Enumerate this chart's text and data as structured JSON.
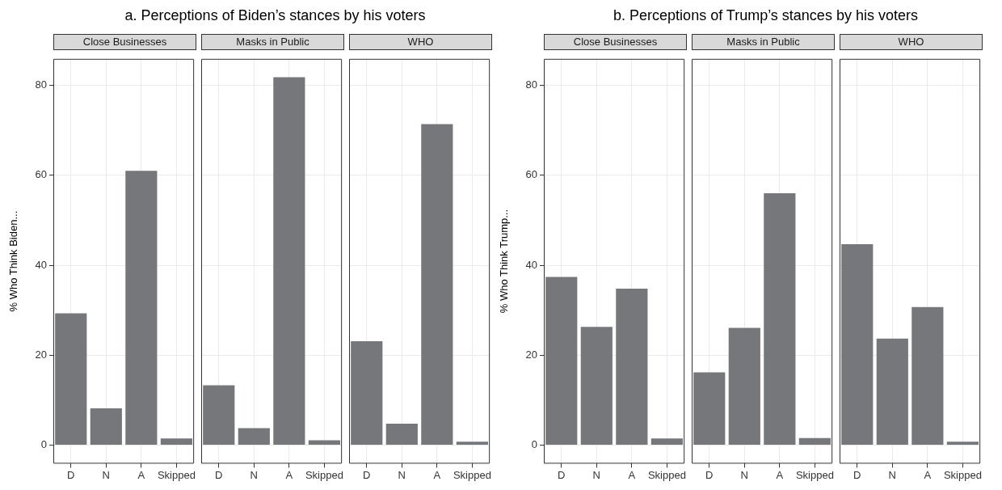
{
  "chart_data": [
    {
      "type": "bar",
      "title": "a. Perceptions of Biden’s stances by his voters",
      "subtitle": "Close Businesses",
      "ylabel": "% Who Think Biden...",
      "categories": [
        "D",
        "N",
        "A",
        "Skipped"
      ],
      "values": [
        29.3,
        8.2,
        61.0,
        1.5
      ],
      "color": "#76777b",
      "ylim": [
        -4.1,
        85.9
      ],
      "yticks": [
        0,
        20,
        40,
        60,
        80
      ],
      "grid": true
    },
    {
      "type": "bar",
      "subtitle": "Masks in Public",
      "categories": [
        "D",
        "N",
        "A",
        "Skipped"
      ],
      "values": [
        13.3,
        3.8,
        81.8,
        1.1
      ],
      "color": "#76777b",
      "ylim": [
        -4.1,
        85.9
      ],
      "yticks": [
        0,
        20,
        40,
        60,
        80
      ],
      "grid": true,
      "tick_labels": "x"
    },
    {
      "type": "bar",
      "subtitle": "WHO",
      "categories": [
        "D",
        "N",
        "A",
        "Skipped"
      ],
      "values": [
        23.1,
        4.8,
        71.4,
        0.8
      ],
      "color": "#76777b",
      "ylim": [
        -4.1,
        85.9
      ],
      "yticks": [
        0,
        20,
        40,
        60,
        80
      ],
      "grid": true,
      "tick_labels": "x"
    },
    {
      "type": "bar",
      "title": "b. Perceptions of Trump’s stances by his voters",
      "subtitle": "Close Businesses",
      "ylabel": "% Who Think Trump...",
      "categories": [
        "D",
        "N",
        "A",
        "Skipped"
      ],
      "values": [
        37.4,
        26.3,
        34.8,
        1.5
      ],
      "color": "#76777b",
      "ylim": [
        -4.1,
        85.9
      ],
      "yticks": [
        0,
        20,
        40,
        60,
        80
      ],
      "grid": true
    },
    {
      "type": "bar",
      "subtitle": "Masks in Public",
      "categories": [
        "D",
        "N",
        "A",
        "Skipped"
      ],
      "values": [
        16.2,
        26.1,
        56.0,
        1.6
      ],
      "color": "#76777b",
      "ylim": [
        -4.1,
        85.9
      ],
      "yticks": [
        0,
        20,
        40,
        60,
        80
      ],
      "grid": true,
      "tick_labels": "x"
    },
    {
      "type": "bar",
      "subtitle": "WHO",
      "categories": [
        "D",
        "N",
        "A",
        "Skipped"
      ],
      "values": [
        44.7,
        23.7,
        30.7,
        0.8
      ],
      "color": "#76777b",
      "ylim": [
        -4.1,
        85.9
      ],
      "yticks": [
        0,
        20,
        40,
        60,
        80
      ],
      "grid": true,
      "tick_labels": "x"
    }
  ]
}
